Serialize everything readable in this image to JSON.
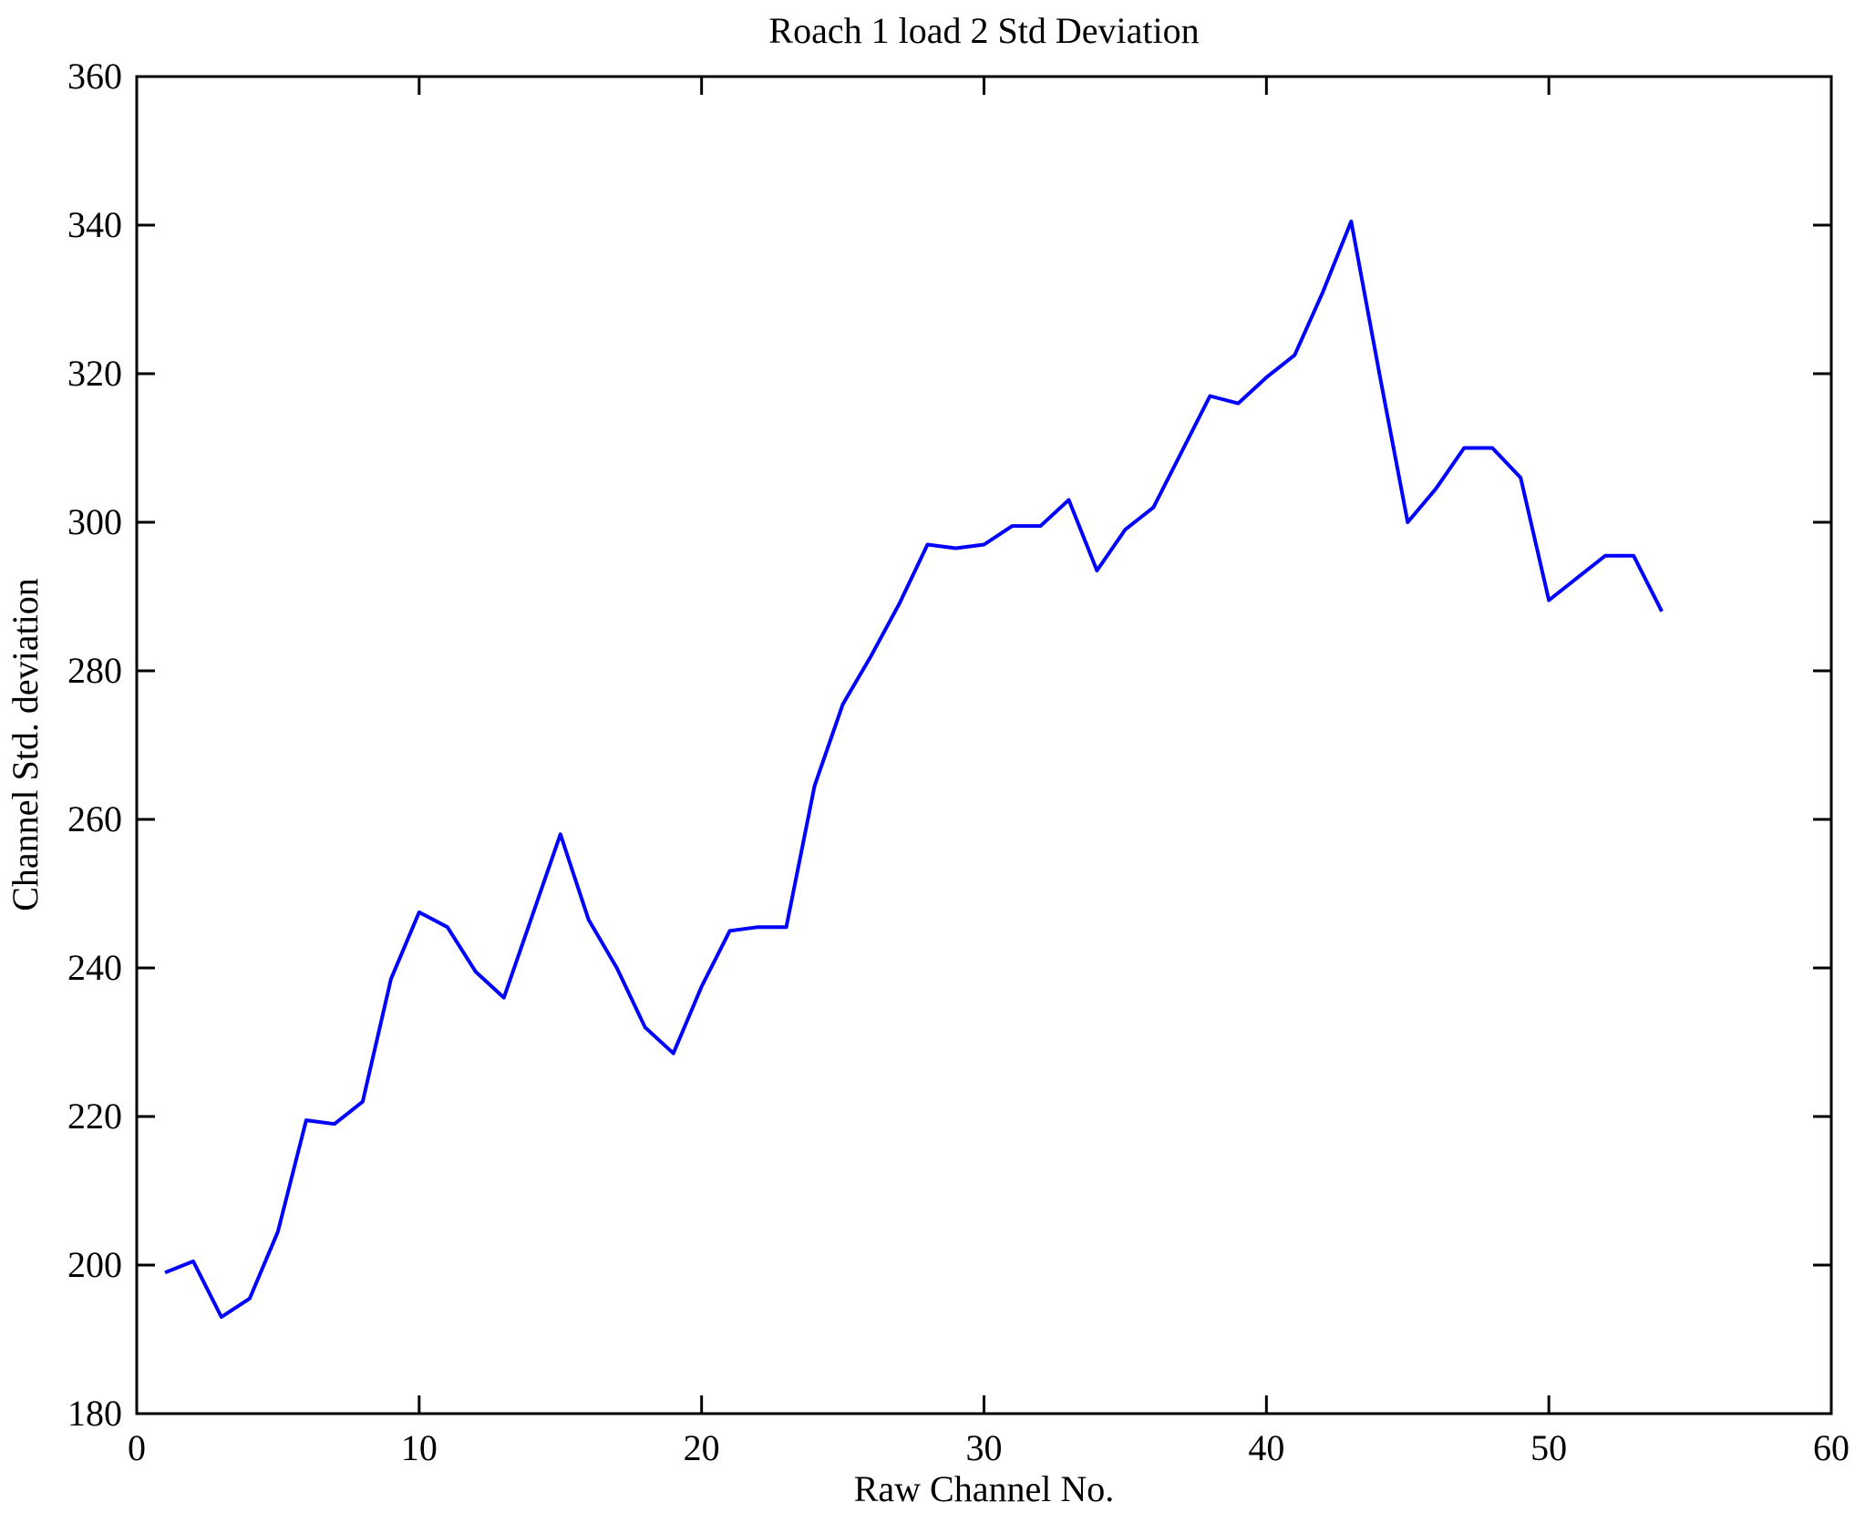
{
  "chart_data": {
    "type": "line",
    "title": "Roach 1 load 2 Std Deviation",
    "xlabel": "Raw Channel No.",
    "ylabel": "Channel Std. deviation",
    "xlim": [
      0,
      60
    ],
    "ylim": [
      180,
      360
    ],
    "x_ticks": [
      0,
      10,
      20,
      30,
      40,
      50,
      60
    ],
    "y_ticks": [
      180,
      200,
      220,
      240,
      260,
      280,
      300,
      320,
      340,
      360
    ],
    "grid": false,
    "legend_position": "none",
    "line_color": "#0000ff",
    "axis_color": "#000000",
    "background_color": "#ffffff",
    "series": [
      {
        "name": "Channel std deviation",
        "x": [
          1,
          2,
          3,
          4,
          5,
          6,
          7,
          8,
          9,
          10,
          11,
          12,
          13,
          14,
          15,
          16,
          17,
          18,
          19,
          20,
          21,
          22,
          23,
          24,
          25,
          26,
          27,
          28,
          29,
          30,
          31,
          32,
          33,
          34,
          35,
          36,
          37,
          38,
          39,
          40,
          41,
          42,
          43,
          44,
          45,
          46,
          47,
          48,
          49,
          50,
          51,
          52,
          53,
          54
        ],
        "y": [
          199,
          200.5,
          193,
          195.5,
          204.5,
          219.5,
          219,
          222,
          238.5,
          247.5,
          245.5,
          239.5,
          236,
          247,
          258,
          246.5,
          240,
          232,
          228.5,
          237.5,
          245,
          245.5,
          245.5,
          264.5,
          275.5,
          282,
          289,
          297,
          296.5,
          297,
          299.5,
          299.5,
          303,
          293.5,
          299,
          302,
          309.5,
          317,
          316,
          319.5,
          322.5,
          331,
          340.5,
          320,
          300,
          304.5,
          310,
          310,
          306,
          289.5,
          292.5,
          295.5,
          295.5,
          288
        ]
      }
    ]
  }
}
